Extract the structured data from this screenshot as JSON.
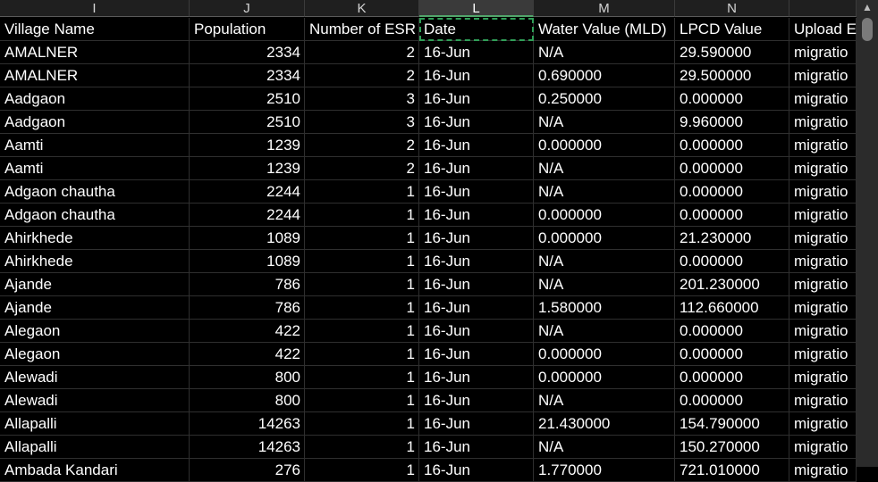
{
  "columns": [
    "I",
    "J",
    "K",
    "L",
    "M",
    "N",
    ""
  ],
  "selected_column": "L",
  "header_row": [
    "Village Name",
    "Population",
    "Number of ESR",
    "Date",
    "Water Value (MLD)",
    "LPCD Value",
    "Upload E"
  ],
  "rows": [
    [
      "AMALNER",
      "2334",
      "2",
      "16-Jun",
      "N/A",
      "29.590000",
      "migratio"
    ],
    [
      "AMALNER",
      "2334",
      "2",
      "16-Jun",
      "0.690000",
      "29.500000",
      "migratio"
    ],
    [
      "Aadgaon",
      "2510",
      "3",
      "16-Jun",
      "0.250000",
      "0.000000",
      "migratio"
    ],
    [
      "Aadgaon",
      "2510",
      "3",
      "16-Jun",
      "N/A",
      "9.960000",
      "migratio"
    ],
    [
      "Aamti",
      "1239",
      "2",
      "16-Jun",
      "0.000000",
      "0.000000",
      "migratio"
    ],
    [
      "Aamti",
      "1239",
      "2",
      "16-Jun",
      "N/A",
      "0.000000",
      "migratio"
    ],
    [
      "Adgaon chautha",
      "2244",
      "1",
      "16-Jun",
      "N/A",
      "0.000000",
      "migratio"
    ],
    [
      "Adgaon chautha",
      "2244",
      "1",
      "16-Jun",
      "0.000000",
      "0.000000",
      "migratio"
    ],
    [
      "Ahirkhede",
      "1089",
      "1",
      "16-Jun",
      "0.000000",
      "21.230000",
      "migratio"
    ],
    [
      "Ahirkhede",
      "1089",
      "1",
      "16-Jun",
      "N/A",
      "0.000000",
      "migratio"
    ],
    [
      "Ajande",
      "786",
      "1",
      "16-Jun",
      "N/A",
      "201.230000",
      "migratio"
    ],
    [
      "Ajande",
      "786",
      "1",
      "16-Jun",
      "1.580000",
      "112.660000",
      "migratio"
    ],
    [
      "Alegaon",
      "422",
      "1",
      "16-Jun",
      "N/A",
      "0.000000",
      "migratio"
    ],
    [
      "Alegaon",
      "422",
      "1",
      "16-Jun",
      "0.000000",
      "0.000000",
      "migratio"
    ],
    [
      "Alewadi",
      "800",
      "1",
      "16-Jun",
      "0.000000",
      "0.000000",
      "migratio"
    ],
    [
      "Alewadi",
      "800",
      "1",
      "16-Jun",
      "N/A",
      "0.000000",
      "migratio"
    ],
    [
      "Allapalli",
      "14263",
      "1",
      "16-Jun",
      "21.430000",
      "154.790000",
      "migratio"
    ],
    [
      "Allapalli",
      "14263",
      "1",
      "16-Jun",
      "N/A",
      "150.270000",
      "migratio"
    ],
    [
      "Ambada Kandari",
      "276",
      "1",
      "16-Jun",
      "1.770000",
      "721.010000",
      "migratio"
    ]
  ],
  "scrollbar": {
    "up_icon": "▲"
  }
}
